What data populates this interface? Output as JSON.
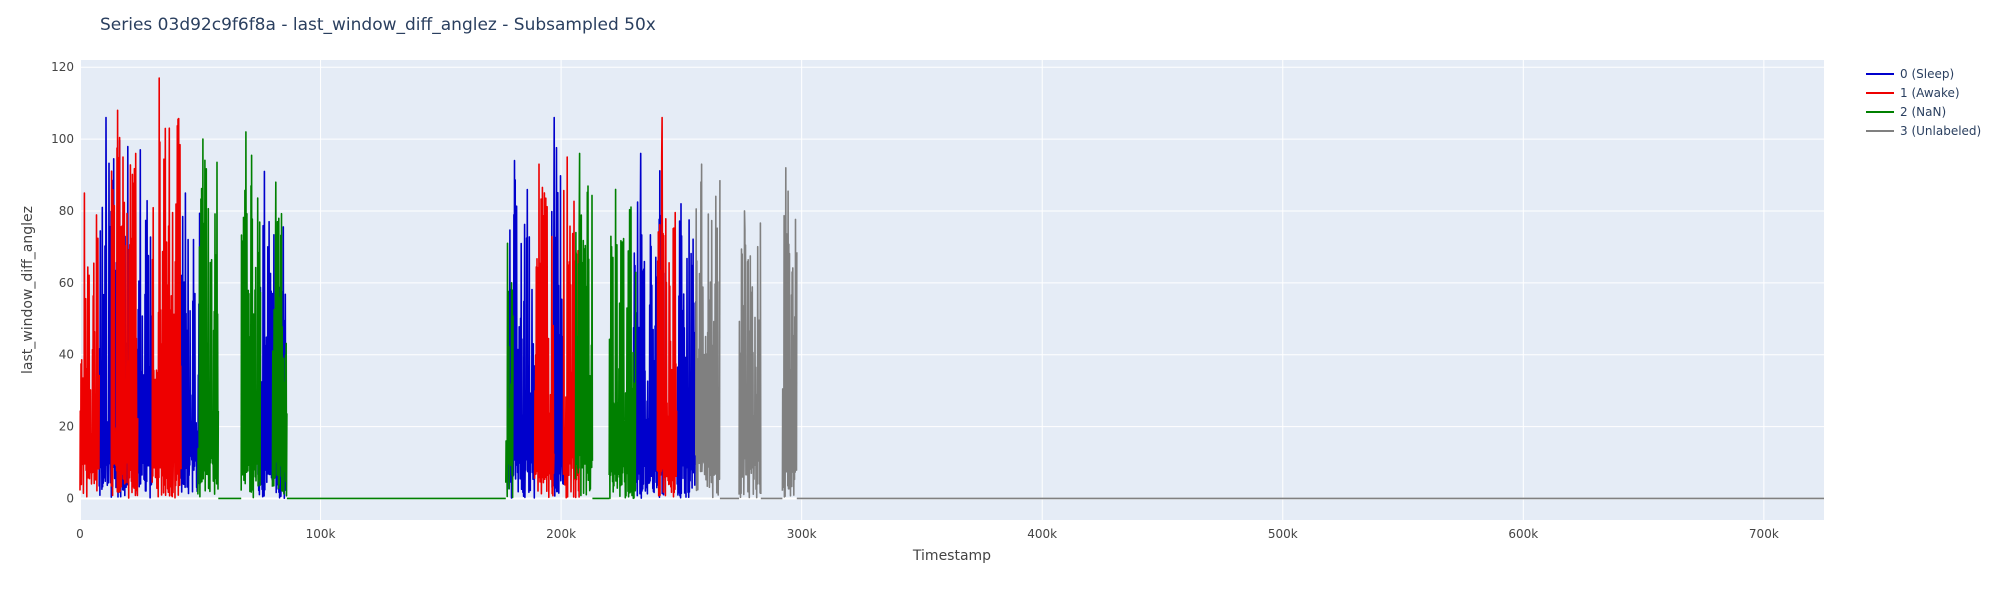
{
  "chart_data": {
    "type": "line",
    "title": "Series 03d92c9f6f8a - last_window_diff_anglez - Subsampled 50x",
    "xlabel": "Timestamp",
    "ylabel": "last_window_diff_anglez",
    "xlim": [
      0,
      725000
    ],
    "ylim": [
      -6,
      122
    ],
    "x_ticks": [
      0,
      100000,
      200000,
      300000,
      400000,
      500000,
      600000,
      700000
    ],
    "x_tick_labels": [
      "0",
      "100k",
      "200k",
      "300k",
      "400k",
      "500k",
      "600k",
      "700k"
    ],
    "y_ticks": [
      0,
      20,
      40,
      60,
      80,
      100,
      120
    ],
    "y_tick_labels": [
      "0",
      "20",
      "40",
      "60",
      "80",
      "100",
      "120"
    ],
    "grid": true,
    "legend_position": "top-right",
    "series": [
      {
        "name": "0 (Sleep)",
        "color": "#0000cc",
        "segments": [
          {
            "x0": 8000,
            "x1": 20000,
            "peak": 106,
            "seed": 11
          },
          {
            "x0": 23500,
            "x1": 30000,
            "peak": 97,
            "seed": 12
          },
          {
            "x0": 42000,
            "x1": 50000,
            "peak": 85,
            "seed": 13
          },
          {
            "x0": 74000,
            "x1": 85500,
            "peak": 91,
            "seed": 14
          },
          {
            "x0": 178000,
            "x1": 189000,
            "peak": 94,
            "seed": 15
          },
          {
            "x0": 196000,
            "x1": 201000,
            "peak": 106,
            "seed": 16
          },
          {
            "x0": 230000,
            "x1": 243000,
            "peak": 96,
            "seed": 17
          },
          {
            "x0": 248000,
            "x1": 256000,
            "peak": 82,
            "seed": 18
          }
        ]
      },
      {
        "name": "1 (Awake)",
        "color": "#ee0000",
        "segments": [
          {
            "x0": 0,
            "x1": 8000,
            "peak": 85,
            "seed": 21
          },
          {
            "x0": 13000,
            "x1": 24000,
            "peak": 108,
            "seed": 22
          },
          {
            "x0": 30000,
            "x1": 42000,
            "peak": 117,
            "seed": 23
          },
          {
            "x0": 189000,
            "x1": 197000,
            "peak": 93,
            "seed": 24
          },
          {
            "x0": 201000,
            "x1": 207500,
            "peak": 95,
            "seed": 25
          },
          {
            "x0": 240000,
            "x1": 248000,
            "peak": 106,
            "seed": 26
          }
        ]
      },
      {
        "name": "2 (NaN)",
        "color": "#008000",
        "segments": [
          {
            "x0": 49000,
            "x1": 57500,
            "peak": 100,
            "seed": 31
          },
          {
            "x0": 57500,
            "x1": 67000,
            "flat": 0
          },
          {
            "x0": 67000,
            "x1": 75000,
            "peak": 102,
            "seed": 32
          },
          {
            "x0": 80000,
            "x1": 86000,
            "peak": 88,
            "seed": 33
          },
          {
            "x0": 86000,
            "x1": 177000,
            "flat": 0
          },
          {
            "x0": 177000,
            "x1": 180000,
            "peak": 71,
            "seed": 34
          },
          {
            "x0": 206000,
            "x1": 213000,
            "peak": 96,
            "seed": 35
          },
          {
            "x0": 213000,
            "x1": 220000,
            "flat": 0
          },
          {
            "x0": 220000,
            "x1": 231000,
            "peak": 86,
            "seed": 36
          }
        ]
      },
      {
        "name": "3 (Unlabeled)",
        "color": "#808080",
        "segments": [
          {
            "x0": 256000,
            "x1": 266000,
            "peak": 93,
            "seed": 41
          },
          {
            "x0": 266000,
            "x1": 274000,
            "flat": 0
          },
          {
            "x0": 274000,
            "x1": 283000,
            "peak": 80,
            "seed": 42
          },
          {
            "x0": 283000,
            "x1": 292000,
            "flat": 0
          },
          {
            "x0": 292000,
            "x1": 298000,
            "peak": 92,
            "seed": 43
          },
          {
            "x0": 298000,
            "x1": 725000,
            "flat": 0
          }
        ]
      }
    ]
  }
}
